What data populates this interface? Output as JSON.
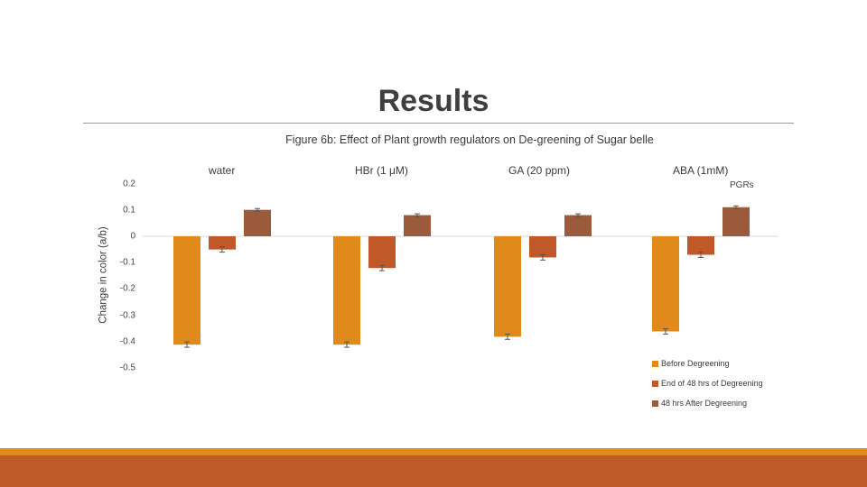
{
  "slide": {
    "title": "Results"
  },
  "chart_data": {
    "type": "bar",
    "title": "Figure 6b: Effect of Plant growth regulators on De-greening of Sugar belle",
    "xlabel": "PGRs",
    "ylabel": "Change in color (a/b)",
    "categories": [
      "water",
      "HBr (1 μM)",
      "GA (20 ppm)",
      "ABA (1mM)"
    ],
    "series": [
      {
        "name": "Before Degreening",
        "color": "#e08a1c",
        "values": [
          -0.41,
          -0.41,
          -0.38,
          -0.36
        ],
        "errors": [
          0.01,
          0.01,
          0.01,
          0.01
        ]
      },
      {
        "name": "End of 48 hrs of Degreening",
        "color": "#c0582a",
        "values": [
          -0.05,
          -0.12,
          -0.08,
          -0.07
        ],
        "errors": [
          0.01,
          0.01,
          0.01,
          0.01
        ]
      },
      {
        "name": "48 hrs After Degreening",
        "color": "#9c5a3c",
        "values": [
          0.1,
          0.08,
          0.08,
          0.11
        ],
        "errors": [
          0.005,
          0.005,
          0.005,
          0.005
        ]
      }
    ],
    "yticks": [
      "0.2",
      "0.1",
      "0",
      "-0.1",
      "-0.2",
      "-0.3",
      "-0.4",
      "-0.5"
    ],
    "ylim": [
      -0.5,
      0.2
    ],
    "grid": false,
    "legend_position": "bottom-right"
  }
}
